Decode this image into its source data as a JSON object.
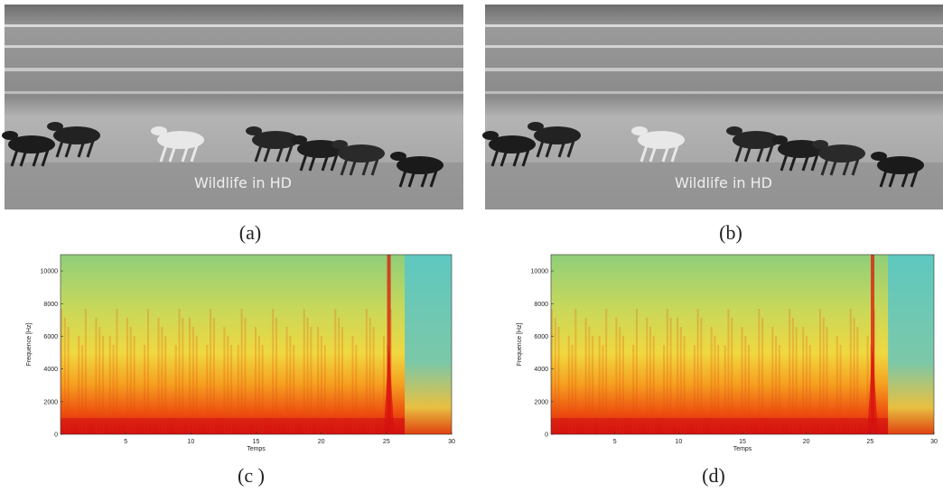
{
  "panels": [
    {
      "overlay": "Wildlife in HD",
      "caption": "(a)"
    },
    {
      "overlay": "Wildlife in HD",
      "caption": "(b)"
    }
  ],
  "spectrograms": [
    {
      "caption": "(c )",
      "xlabel": "Temps",
      "ylabel": "Frequence [Hz]",
      "xlim": [
        0,
        30
      ],
      "ylim": [
        0,
        11000
      ],
      "xticks": [
        5,
        10,
        15,
        20,
        25,
        30
      ],
      "yticks": [
        0,
        2000,
        4000,
        6000,
        8000,
        10000
      ]
    },
    {
      "caption": "(d)",
      "xlabel": "Temps",
      "ylabel": "Frequence [Hz]",
      "xlim": [
        0,
        30
      ],
      "ylim": [
        0,
        11000
      ],
      "xticks": [
        5,
        10,
        15,
        20,
        25,
        30
      ],
      "yticks": [
        0,
        2000,
        4000,
        6000,
        8000,
        10000
      ]
    }
  ]
}
